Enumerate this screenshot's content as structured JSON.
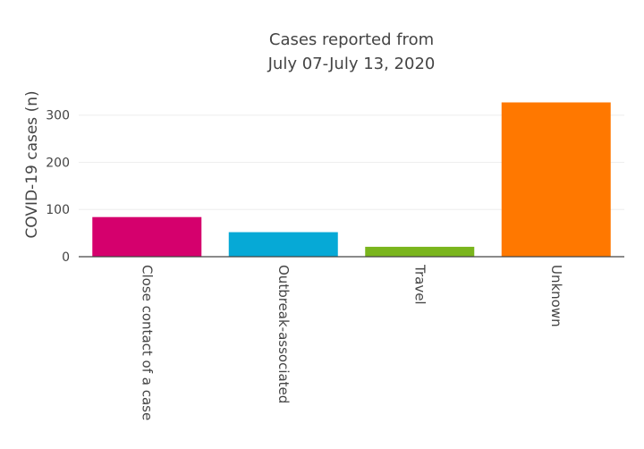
{
  "chart_data": {
    "type": "bar",
    "title": [
      "Cases reported from",
      "July 07-July 13, 2020"
    ],
    "xlabel": "",
    "ylabel": "COVID-19 cases (n)",
    "categories": [
      "Close contact of a case",
      "Outbreak-associated",
      "Travel",
      "Unknown"
    ],
    "values": [
      84,
      52,
      21,
      327
    ],
    "colors": [
      "#d5006d",
      "#06a9d6",
      "#7ab51d",
      "#ff7800"
    ],
    "ylim": [
      0,
      345
    ],
    "yticks": [
      0,
      100,
      200,
      300
    ],
    "grid": true,
    "legend": "none"
  }
}
